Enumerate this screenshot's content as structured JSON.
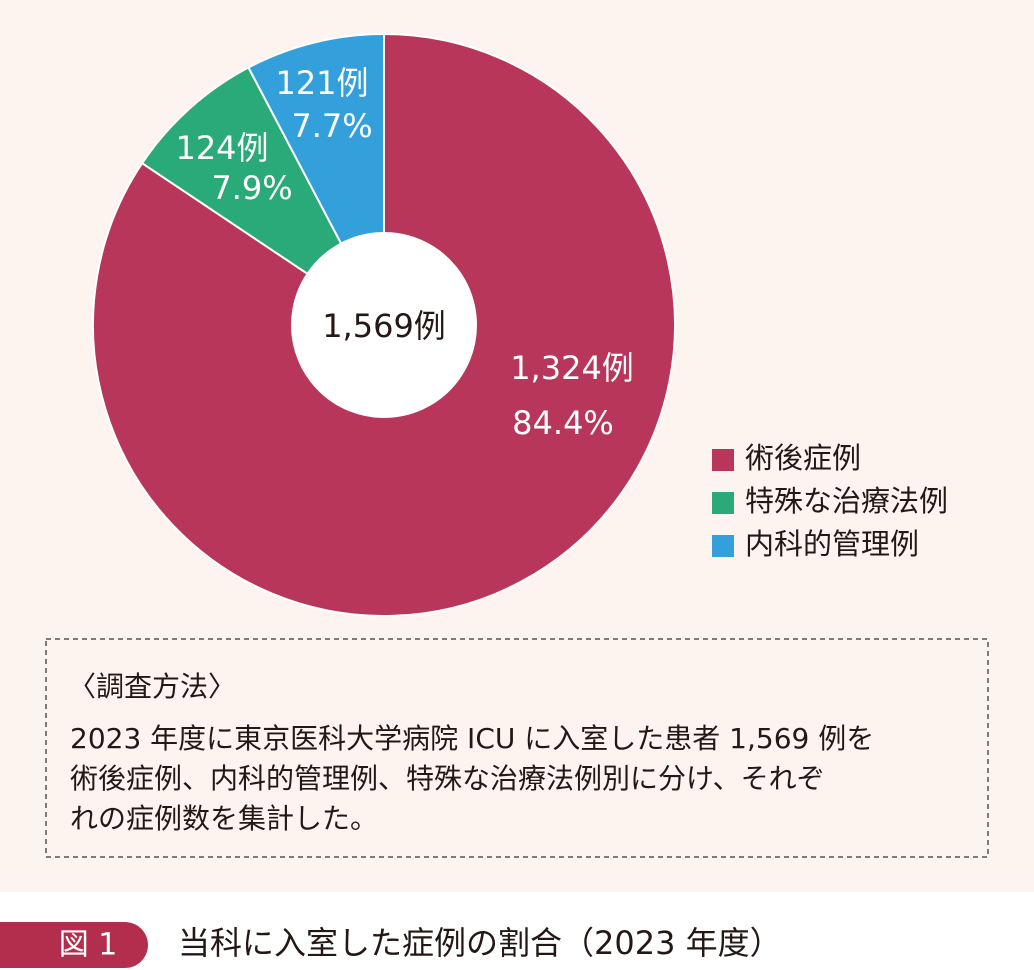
{
  "chart_data": {
    "type": "pie",
    "donut": true,
    "categories": [
      "術後症例",
      "特殊な治療法例",
      "内科的管理例"
    ],
    "values": [
      1324,
      124,
      121
    ],
    "value_labels": [
      "1,324例",
      "124例",
      "121例"
    ],
    "shares": [
      84.4,
      7.9,
      7.7
    ],
    "share_labels": [
      "84.4%",
      "7.9%",
      "7.7%"
    ],
    "colors": [
      "#b8365a",
      "#2aaa78",
      "#33a0dc"
    ],
    "center_label": "1,569例",
    "legend": "right"
  },
  "note": {
    "heading": "〈調査方法〉",
    "lines": [
      "2023 年度に東京医科大学病院 ICU に入室した患者 1,569 例を",
      "術後症例、内科的管理例、特殊な治療法例別に分け、それぞ",
      "れの症例数を集計した。"
    ]
  },
  "caption": {
    "figure_label": "図 1",
    "title": "当科に入室した症例の割合（2023 年度）"
  }
}
